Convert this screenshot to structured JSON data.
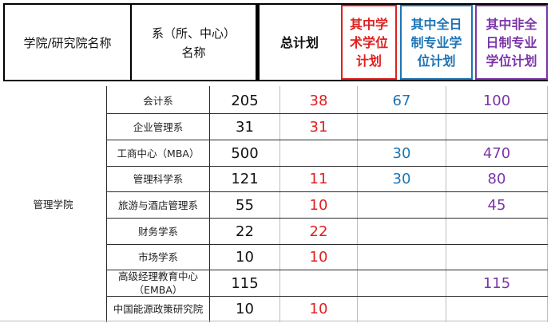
{
  "header": {
    "col1": "学院/研究院名称",
    "col2_line1": "系（所、中心）",
    "col2_line2": "名称",
    "col3": "总计划",
    "col4_lines": [
      "其中学",
      "术学位",
      "计划"
    ],
    "col5_lines": [
      "其中全日",
      "制专业学",
      "位计划"
    ],
    "col6_lines": [
      "其中非全",
      "日制专业",
      "学位计划"
    ]
  },
  "college": "管理学院",
  "colors": {
    "academic": "#e02020",
    "fulltime": "#1e75b6",
    "parttime": "#7b35a8",
    "header_academic_border": "#e02020",
    "header_fulltime_border": "#1e75b6",
    "header_parttime_border": "#7b35a8"
  },
  "rows": [
    {
      "dept": "会计系",
      "total": "205",
      "academic": "38",
      "fulltime": "67",
      "parttime": "100"
    },
    {
      "dept": "企业管理系",
      "total": "31",
      "academic": "31",
      "fulltime": "",
      "parttime": ""
    },
    {
      "dept": "工商中心（MBA）",
      "total": "500",
      "academic": "",
      "fulltime": "30",
      "parttime": "470"
    },
    {
      "dept": "管理科学系",
      "total": "121",
      "academic": "11",
      "fulltime": "30",
      "parttime": "80"
    },
    {
      "dept": "旅游与酒店管理系",
      "total": "55",
      "academic": "10",
      "fulltime": "",
      "parttime": "45"
    },
    {
      "dept": "财务学系",
      "total": "22",
      "academic": "22",
      "fulltime": "",
      "parttime": ""
    },
    {
      "dept": "市场学系",
      "total": "10",
      "academic": "10",
      "fulltime": "",
      "parttime": ""
    },
    {
      "dept": "高级经理教育中心\n（EMBA）",
      "total": "115",
      "academic": "",
      "fulltime": "",
      "parttime": "115"
    },
    {
      "dept": "中国能源政策研究院",
      "total": "10",
      "academic": "10",
      "fulltime": "",
      "parttime": ""
    }
  ]
}
